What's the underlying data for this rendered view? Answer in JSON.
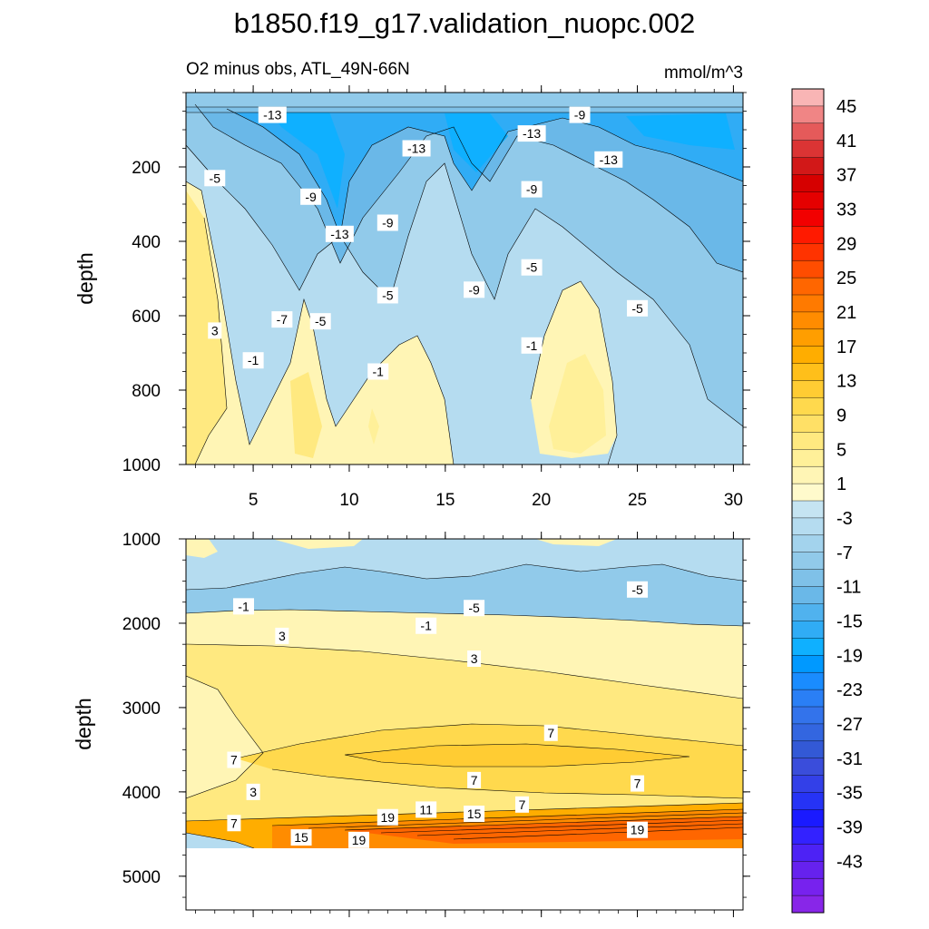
{
  "chart_data": {
    "type": "contour",
    "title": "b1850.f19_g17.validation_nuopc.002",
    "subtitle_left": "O2 minus obs, ATL_49N-66N",
    "subtitle_right": "mmol/m^3",
    "panels": [
      {
        "name": "upper",
        "ylabel": "depth",
        "ylim": [
          1000,
          0
        ],
        "yticks": [
          200,
          400,
          600,
          800,
          1000
        ],
        "xlim": [
          1.5,
          30.5
        ],
        "xticks": [
          5,
          10,
          15,
          20,
          25,
          30
        ],
        "contour_labels": [
          {
            "text": "-13",
            "x": 6.0,
            "y": 60
          },
          {
            "text": "-9",
            "x": 22.0,
            "y": 60
          },
          {
            "text": "-13",
            "x": 13.5,
            "y": 150
          },
          {
            "text": "-13",
            "x": 19.5,
            "y": 110
          },
          {
            "text": "-13",
            "x": 23.5,
            "y": 180
          },
          {
            "text": "-5",
            "x": 3.0,
            "y": 230
          },
          {
            "text": "-9",
            "x": 8.0,
            "y": 280
          },
          {
            "text": "-9",
            "x": 19.5,
            "y": 260
          },
          {
            "text": "-9",
            "x": 12.0,
            "y": 350
          },
          {
            "text": "-13",
            "x": 9.5,
            "y": 380
          },
          {
            "text": "-5",
            "x": 19.5,
            "y": 470
          },
          {
            "text": "-9",
            "x": 16.5,
            "y": 530
          },
          {
            "text": "-5",
            "x": 12.0,
            "y": 545
          },
          {
            "text": "-5",
            "x": 25.0,
            "y": 580
          },
          {
            "text": "-7",
            "x": 6.5,
            "y": 610
          },
          {
            "text": "-5",
            "x": 8.5,
            "y": 615
          },
          {
            "text": "3",
            "x": 3.0,
            "y": 640
          },
          {
            "text": "-1",
            "x": 19.5,
            "y": 680
          },
          {
            "text": "-1",
            "x": 5.0,
            "y": 720
          },
          {
            "text": "-1",
            "x": 11.5,
            "y": 750
          }
        ]
      },
      {
        "name": "lower",
        "ylabel": "depth",
        "ylim": [
          5400,
          1000
        ],
        "yticks": [
          1000,
          2000,
          3000,
          4000,
          5000
        ],
        "xlim": [
          1.5,
          30.5
        ],
        "contour_labels": [
          {
            "text": "-5",
            "x": 25.0,
            "y": 1600
          },
          {
            "text": "-1",
            "x": 4.5,
            "y": 1800
          },
          {
            "text": "-5",
            "x": 16.5,
            "y": 1820
          },
          {
            "text": "-1",
            "x": 14.0,
            "y": 2030
          },
          {
            "text": "3",
            "x": 6.5,
            "y": 2150
          },
          {
            "text": "3",
            "x": 16.5,
            "y": 2420
          },
          {
            "text": "7",
            "x": 20.5,
            "y": 3300
          },
          {
            "text": "7",
            "x": 4.0,
            "y": 3620
          },
          {
            "text": "7",
            "x": 16.5,
            "y": 3860
          },
          {
            "text": "7",
            "x": 25.0,
            "y": 3900
          },
          {
            "text": "3",
            "x": 5.0,
            "y": 4000
          },
          {
            "text": "7",
            "x": 19.0,
            "y": 4150
          },
          {
            "text": "11",
            "x": 14.0,
            "y": 4210
          },
          {
            "text": "15",
            "x": 16.5,
            "y": 4260
          },
          {
            "text": "19",
            "x": 12.0,
            "y": 4300
          },
          {
            "text": "19",
            "x": 25.0,
            "y": 4450
          },
          {
            "text": "7",
            "x": 4.0,
            "y": 4370
          },
          {
            "text": "15",
            "x": 7.5,
            "y": 4540
          },
          {
            "text": "19",
            "x": 10.5,
            "y": 4570
          }
        ]
      }
    ],
    "xticks_shared": [
      5,
      10,
      15,
      20,
      25,
      30
    ],
    "colorbar": {
      "labels": [
        "45",
        "41",
        "37",
        "33",
        "29",
        "25",
        "21",
        "17",
        "13",
        "9",
        "5",
        "1",
        "-3",
        "-7",
        "-11",
        "-15",
        "-19",
        "-23",
        "-27",
        "-31",
        "-35",
        "-39",
        "-43"
      ],
      "colors": [
        "#f9b5b5",
        "#f08585",
        "#e55a5a",
        "#db3434",
        "#d21818",
        "#d60000",
        "#e50000",
        "#f20000",
        "#ff1a00",
        "#ff3300",
        "#ff4d00",
        "#ff6600",
        "#ff7a00",
        "#ff8c00",
        "#ff9e00",
        "#ffad00",
        "#ffbf1a",
        "#ffcc33",
        "#ffd94d",
        "#ffe066",
        "#ffe980",
        "#fff099",
        "#fff5b5",
        "#fffacc",
        "#c5e4f2",
        "#b5dcf0",
        "#a3d3ed",
        "#91caea",
        "#7fc1e8",
        "#6ab8e8",
        "#50b2ee",
        "#30acf5",
        "#0fb0ff",
        "#0099ff",
        "#1a8cff",
        "#2a7ff5",
        "#3373eb",
        "#3366e0",
        "#3359d6",
        "#3a4ddb",
        "#3340e8",
        "#2633f5",
        "#1a1aff",
        "#3322ff",
        "#4d22f5",
        "#6622ee",
        "#7722ee",
        "#8826e8"
      ]
    }
  }
}
